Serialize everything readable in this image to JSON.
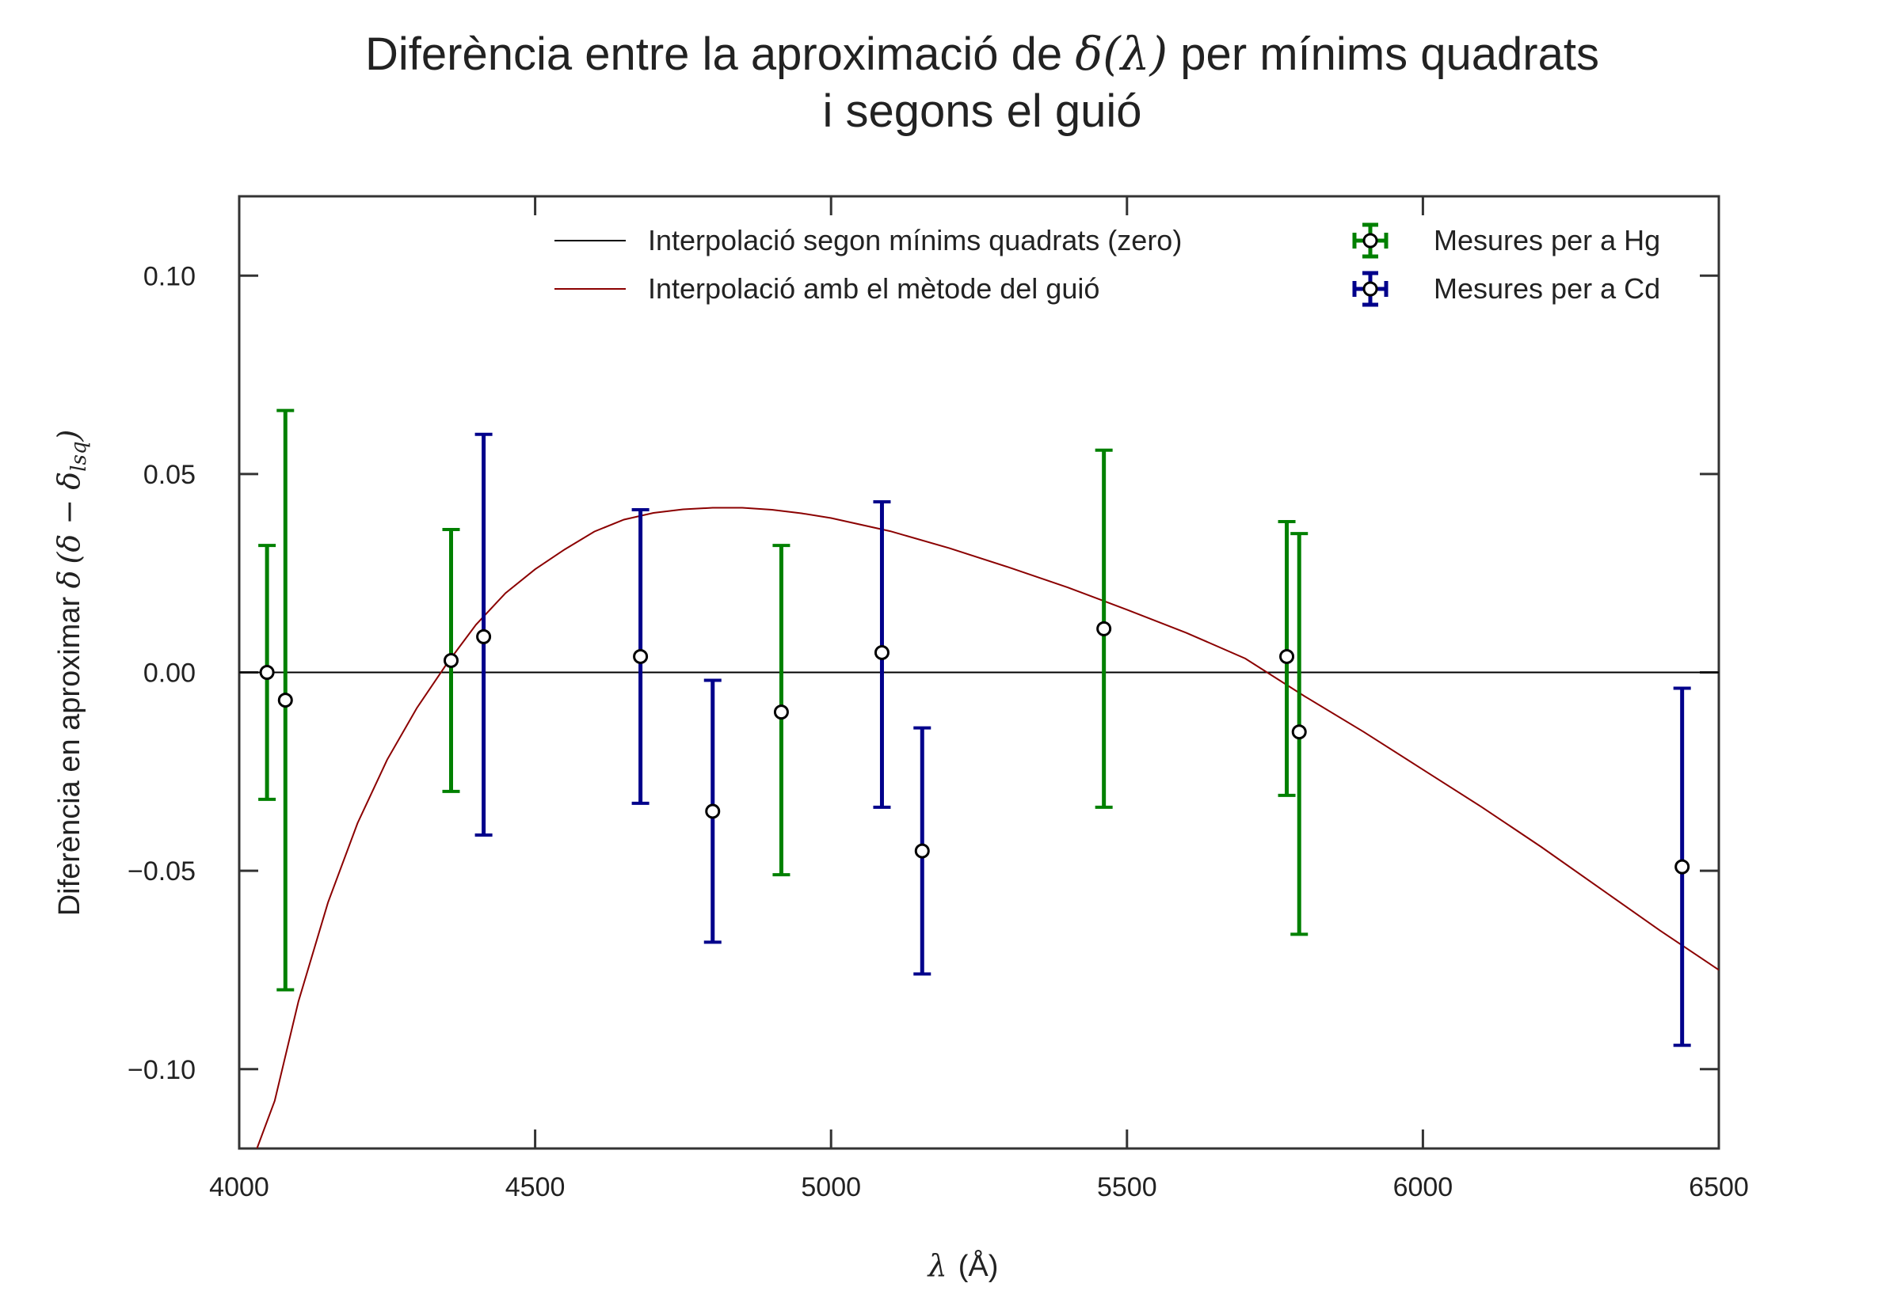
{
  "chart_data": {
    "type": "scatter",
    "title": {
      "line1_prefix": "Diferència entre la aproximació de ",
      "line1_math": "δ(λ)",
      "line1_suffix": " per mínims quadrats",
      "line2": "i segons el guió"
    },
    "xlabel": {
      "math": "λ",
      "unit": "(Å)"
    },
    "ylabel": {
      "prefix": "Diferència en aproximar ",
      "math": "δ",
      "paren": "(δ − δ",
      "subscript": "lsq",
      "close": ")"
    },
    "xlim": [
      4000,
      6500
    ],
    "ylim": [
      -0.12,
      0.12
    ],
    "xticks": [
      4000,
      4500,
      5000,
      5500,
      6000,
      6500
    ],
    "xtick_labels": [
      "4000",
      "4500",
      "5000",
      "5500",
      "6000",
      "6500"
    ],
    "yticks": [
      0.1,
      0.05,
      0.0,
      -0.05,
      -0.1
    ],
    "ytick_labels": [
      "0.10",
      "0.05",
      "0.00",
      "−0.05",
      "−0.10"
    ],
    "legend_position": "top-right",
    "lines": [
      {
        "name": "Interpolació segon mínims quadrats (zero)",
        "color": "#000000",
        "x": [
          4000,
          6500
        ],
        "y": [
          0,
          0
        ]
      },
      {
        "name": "Interpolació amb el mètode del guió",
        "color": "#8b0000",
        "x": [
          4030,
          4060,
          4100,
          4150,
          4200,
          4250,
          4300,
          4350,
          4400,
          4450,
          4500,
          4550,
          4600,
          4650,
          4700,
          4750,
          4800,
          4850,
          4900,
          4950,
          5000,
          5100,
          5200,
          5300,
          5400,
          5500,
          5600,
          5700,
          5800,
          5900,
          6000,
          6100,
          6200,
          6300,
          6400,
          6500
        ],
        "y": [
          -0.12,
          -0.108,
          -0.083,
          -0.058,
          -0.038,
          -0.022,
          -0.009,
          0.002,
          0.012,
          0.02,
          0.026,
          0.031,
          0.0355,
          0.0385,
          0.0402,
          0.0411,
          0.0415,
          0.0415,
          0.041,
          0.0401,
          0.0389,
          0.0356,
          0.0313,
          0.0265,
          0.0214,
          0.0158,
          0.01,
          0.0035,
          -0.006,
          -0.015,
          -0.0245,
          -0.034,
          -0.044,
          -0.0545,
          -0.065,
          -0.075
        ]
      }
    ],
    "series": [
      {
        "name": "Mesures per a Hg",
        "color": "#008000",
        "points": [
          {
            "x": 4047,
            "y": 0.0,
            "ylow": -0.032,
            "yhigh": 0.032
          },
          {
            "x": 4078,
            "y": -0.007,
            "ylow": -0.08,
            "yhigh": 0.066
          },
          {
            "x": 4358,
            "y": 0.003,
            "ylow": -0.03,
            "yhigh": 0.036
          },
          {
            "x": 4916,
            "y": -0.01,
            "ylow": -0.051,
            "yhigh": 0.032
          },
          {
            "x": 5461,
            "y": 0.011,
            "ylow": -0.034,
            "yhigh": 0.056
          },
          {
            "x": 5770,
            "y": 0.004,
            "ylow": -0.031,
            "yhigh": 0.038
          },
          {
            "x": 5791,
            "y": -0.015,
            "ylow": -0.066,
            "yhigh": 0.035
          }
        ]
      },
      {
        "name": "Mesures per a Cd",
        "color": "#00008b",
        "points": [
          {
            "x": 4413,
            "y": 0.009,
            "ylow": -0.041,
            "yhigh": 0.06
          },
          {
            "x": 4678,
            "y": 0.004,
            "ylow": -0.033,
            "yhigh": 0.041
          },
          {
            "x": 4800,
            "y": -0.035,
            "ylow": -0.068,
            "yhigh": -0.002
          },
          {
            "x": 5086,
            "y": 0.005,
            "ylow": -0.034,
            "yhigh": 0.043
          },
          {
            "x": 5154,
            "y": -0.045,
            "ylow": -0.076,
            "yhigh": -0.014
          },
          {
            "x": 6438,
            "y": -0.049,
            "ylow": -0.094,
            "yhigh": -0.004
          }
        ]
      }
    ]
  }
}
